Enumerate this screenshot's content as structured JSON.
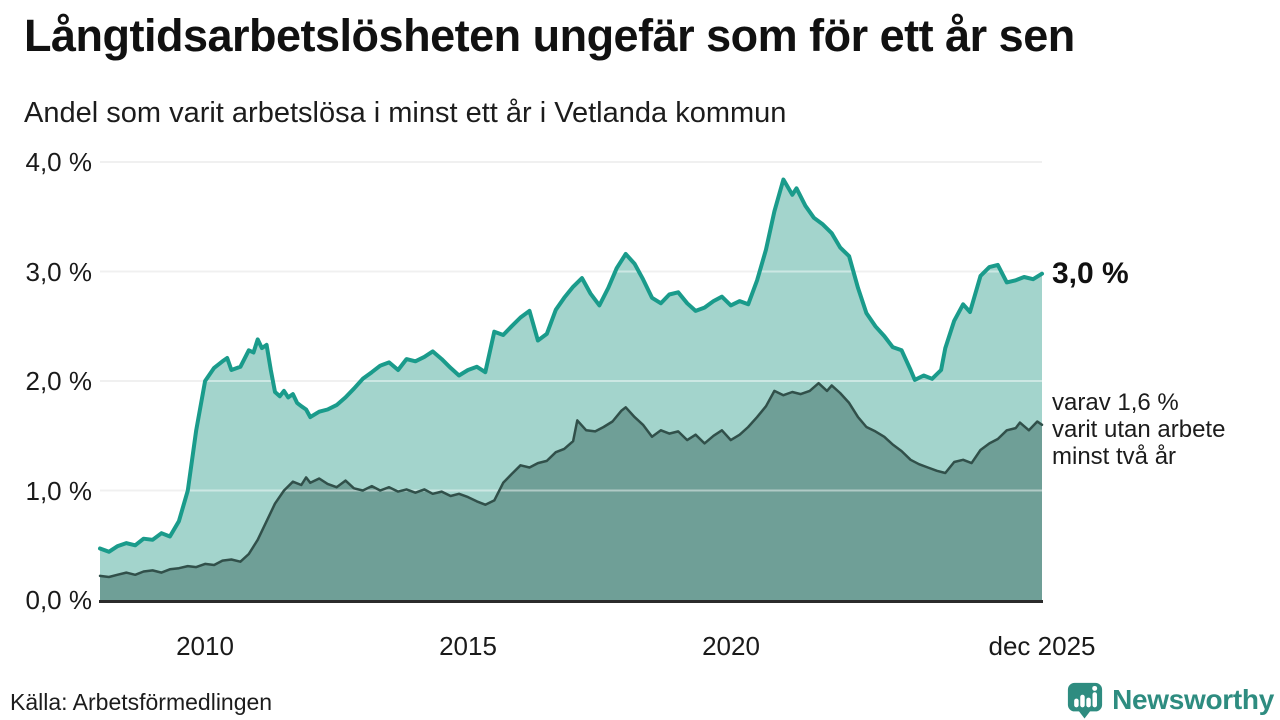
{
  "header": {
    "title": "Långtidsarbetslösheten ungefär som för ett år sen",
    "subtitle": "Andel som varit arbetslösa i minst ett år i Vetlanda kommun"
  },
  "footer": {
    "source": "Källa: Arbetsförmedlingen",
    "brand_name": "Newsworthy"
  },
  "colors": {
    "accent_teal": "#1a9b8b",
    "light_fill": "#a3d4cc",
    "dark_fill": "#6f9f97",
    "dark_line": "#31504a",
    "grid": "#e3e3e3",
    "grid_overlay": "rgba(255,255,255,0.45)",
    "axis": "#2b2b2b",
    "brand_teal": "#2e8c80"
  },
  "chart_data": {
    "type": "area",
    "title": "Långtidsarbetslösheten ungefär som för ett år sen",
    "subtitle": "Andel som varit arbetslösa i minst ett år i Vetlanda kommun",
    "xlabel": "",
    "ylabel": "",
    "xlim": [
      2008.0,
      2025.92
    ],
    "ylim": [
      0,
      4
    ],
    "grid": true,
    "legend_position": "right-annotations",
    "y_ticks": [
      {
        "value": 0,
        "label": "0,0 %"
      },
      {
        "value": 1,
        "label": "1,0 %"
      },
      {
        "value": 2,
        "label": "2,0 %"
      },
      {
        "value": 3,
        "label": "3,0 %"
      },
      {
        "value": 4,
        "label": "4,0 %"
      }
    ],
    "x_ticks": [
      {
        "value": 2010,
        "label": "2010"
      },
      {
        "value": 2015,
        "label": "2015"
      },
      {
        "value": 2020,
        "label": "2020"
      },
      {
        "value": 2025.92,
        "label": "dec 2025"
      }
    ],
    "series": [
      {
        "name": "Andel arbetslösa minst ett år",
        "end_label": "3,0 %",
        "end_value": "3,0 %",
        "line_color": "#1a9b8b",
        "fill_color": "#a3d4cc",
        "line_width": 4,
        "points": [
          [
            2008.0,
            0.47
          ],
          [
            2008.17,
            0.44
          ],
          [
            2008.33,
            0.49
          ],
          [
            2008.5,
            0.52
          ],
          [
            2008.67,
            0.5
          ],
          [
            2008.83,
            0.56
          ],
          [
            2009.0,
            0.55
          ],
          [
            2009.17,
            0.61
          ],
          [
            2009.33,
            0.58
          ],
          [
            2009.5,
            0.72
          ],
          [
            2009.67,
            1.0
          ],
          [
            2009.83,
            1.55
          ],
          [
            2010.0,
            2.0
          ],
          [
            2010.17,
            2.12
          ],
          [
            2010.33,
            2.18
          ],
          [
            2010.42,
            2.21
          ],
          [
            2010.5,
            2.1
          ],
          [
            2010.67,
            2.13
          ],
          [
            2010.83,
            2.28
          ],
          [
            2010.92,
            2.26
          ],
          [
            2011.0,
            2.38
          ],
          [
            2011.08,
            2.3
          ],
          [
            2011.17,
            2.33
          ],
          [
            2011.25,
            2.1
          ],
          [
            2011.33,
            1.9
          ],
          [
            2011.42,
            1.86
          ],
          [
            2011.5,
            1.91
          ],
          [
            2011.58,
            1.85
          ],
          [
            2011.67,
            1.88
          ],
          [
            2011.75,
            1.8
          ],
          [
            2011.83,
            1.77
          ],
          [
            2011.92,
            1.74
          ],
          [
            2012.0,
            1.67
          ],
          [
            2012.17,
            1.72
          ],
          [
            2012.33,
            1.74
          ],
          [
            2012.5,
            1.78
          ],
          [
            2012.67,
            1.85
          ],
          [
            2012.83,
            1.93
          ],
          [
            2013.0,
            2.02
          ],
          [
            2013.17,
            2.08
          ],
          [
            2013.33,
            2.14
          ],
          [
            2013.5,
            2.17
          ],
          [
            2013.67,
            2.1
          ],
          [
            2013.83,
            2.2
          ],
          [
            2014.0,
            2.18
          ],
          [
            2014.17,
            2.22
          ],
          [
            2014.33,
            2.27
          ],
          [
            2014.5,
            2.2
          ],
          [
            2014.67,
            2.12
          ],
          [
            2014.83,
            2.05
          ],
          [
            2015.0,
            2.1
          ],
          [
            2015.17,
            2.13
          ],
          [
            2015.33,
            2.08
          ],
          [
            2015.5,
            2.45
          ],
          [
            2015.67,
            2.42
          ],
          [
            2015.83,
            2.5
          ],
          [
            2016.0,
            2.58
          ],
          [
            2016.17,
            2.64
          ],
          [
            2016.33,
            2.37
          ],
          [
            2016.5,
            2.43
          ],
          [
            2016.67,
            2.65
          ],
          [
            2016.83,
            2.76
          ],
          [
            2017.0,
            2.86
          ],
          [
            2017.17,
            2.94
          ],
          [
            2017.33,
            2.8
          ],
          [
            2017.5,
            2.69
          ],
          [
            2017.67,
            2.85
          ],
          [
            2017.83,
            3.03
          ],
          [
            2018.0,
            3.16
          ],
          [
            2018.17,
            3.07
          ],
          [
            2018.33,
            2.93
          ],
          [
            2018.5,
            2.76
          ],
          [
            2018.67,
            2.71
          ],
          [
            2018.83,
            2.79
          ],
          [
            2019.0,
            2.81
          ],
          [
            2019.17,
            2.71
          ],
          [
            2019.33,
            2.64
          ],
          [
            2019.5,
            2.67
          ],
          [
            2019.67,
            2.73
          ],
          [
            2019.83,
            2.77
          ],
          [
            2020.0,
            2.69
          ],
          [
            2020.17,
            2.73
          ],
          [
            2020.33,
            2.7
          ],
          [
            2020.5,
            2.92
          ],
          [
            2020.67,
            3.2
          ],
          [
            2020.83,
            3.55
          ],
          [
            2021.0,
            3.84
          ],
          [
            2021.17,
            3.7
          ],
          [
            2021.25,
            3.76
          ],
          [
            2021.42,
            3.6
          ],
          [
            2021.58,
            3.49
          ],
          [
            2021.75,
            3.43
          ],
          [
            2021.92,
            3.35
          ],
          [
            2022.08,
            3.22
          ],
          [
            2022.25,
            3.14
          ],
          [
            2022.42,
            2.85
          ],
          [
            2022.58,
            2.62
          ],
          [
            2022.75,
            2.5
          ],
          [
            2022.92,
            2.41
          ],
          [
            2023.08,
            2.31
          ],
          [
            2023.25,
            2.28
          ],
          [
            2023.42,
            2.1
          ],
          [
            2023.5,
            2.01
          ],
          [
            2023.67,
            2.05
          ],
          [
            2023.83,
            2.02
          ],
          [
            2024.0,
            2.1
          ],
          [
            2024.08,
            2.3
          ],
          [
            2024.25,
            2.55
          ],
          [
            2024.42,
            2.7
          ],
          [
            2024.55,
            2.63
          ],
          [
            2024.75,
            2.96
          ],
          [
            2024.92,
            3.04
          ],
          [
            2025.08,
            3.06
          ],
          [
            2025.25,
            2.9
          ],
          [
            2025.42,
            2.92
          ],
          [
            2025.58,
            2.95
          ],
          [
            2025.75,
            2.93
          ],
          [
            2025.92,
            2.98
          ]
        ]
      },
      {
        "name": "varav utan arbete minst två år",
        "end_label_lines": [
          "varav 1,6 %",
          "varit utan arbete",
          "minst två år"
        ],
        "end_value": "1,6 %",
        "line_color": "#31504a",
        "fill_color": "#6f9f97",
        "line_width": 2.5,
        "points": [
          [
            2008.0,
            0.22
          ],
          [
            2008.17,
            0.21
          ],
          [
            2008.33,
            0.23
          ],
          [
            2008.5,
            0.25
          ],
          [
            2008.67,
            0.23
          ],
          [
            2008.83,
            0.26
          ],
          [
            2009.0,
            0.27
          ],
          [
            2009.17,
            0.25
          ],
          [
            2009.33,
            0.28
          ],
          [
            2009.5,
            0.29
          ],
          [
            2009.67,
            0.31
          ],
          [
            2009.83,
            0.3
          ],
          [
            2010.0,
            0.33
          ],
          [
            2010.17,
            0.32
          ],
          [
            2010.33,
            0.36
          ],
          [
            2010.5,
            0.37
          ],
          [
            2010.67,
            0.35
          ],
          [
            2010.83,
            0.42
          ],
          [
            2011.0,
            0.55
          ],
          [
            2011.17,
            0.72
          ],
          [
            2011.33,
            0.88
          ],
          [
            2011.5,
            1.0
          ],
          [
            2011.67,
            1.08
          ],
          [
            2011.83,
            1.05
          ],
          [
            2011.92,
            1.12
          ],
          [
            2012.0,
            1.07
          ],
          [
            2012.17,
            1.11
          ],
          [
            2012.33,
            1.06
          ],
          [
            2012.5,
            1.03
          ],
          [
            2012.67,
            1.09
          ],
          [
            2012.83,
            1.02
          ],
          [
            2013.0,
            1.0
          ],
          [
            2013.17,
            1.04
          ],
          [
            2013.33,
            1.0
          ],
          [
            2013.5,
            1.03
          ],
          [
            2013.67,
            0.99
          ],
          [
            2013.83,
            1.01
          ],
          [
            2014.0,
            0.98
          ],
          [
            2014.17,
            1.01
          ],
          [
            2014.33,
            0.97
          ],
          [
            2014.5,
            0.99
          ],
          [
            2014.67,
            0.95
          ],
          [
            2014.83,
            0.97
          ],
          [
            2015.0,
            0.94
          ],
          [
            2015.17,
            0.9
          ],
          [
            2015.33,
            0.87
          ],
          [
            2015.5,
            0.91
          ],
          [
            2015.67,
            1.07
          ],
          [
            2015.83,
            1.15
          ],
          [
            2016.0,
            1.23
          ],
          [
            2016.17,
            1.21
          ],
          [
            2016.33,
            1.25
          ],
          [
            2016.5,
            1.27
          ],
          [
            2016.67,
            1.35
          ],
          [
            2016.83,
            1.38
          ],
          [
            2017.0,
            1.45
          ],
          [
            2017.08,
            1.64
          ],
          [
            2017.25,
            1.55
          ],
          [
            2017.42,
            1.54
          ],
          [
            2017.58,
            1.58
          ],
          [
            2017.75,
            1.63
          ],
          [
            2017.92,
            1.73
          ],
          [
            2018.0,
            1.76
          ],
          [
            2018.17,
            1.67
          ],
          [
            2018.33,
            1.6
          ],
          [
            2018.5,
            1.49
          ],
          [
            2018.67,
            1.55
          ],
          [
            2018.83,
            1.52
          ],
          [
            2019.0,
            1.54
          ],
          [
            2019.17,
            1.46
          ],
          [
            2019.33,
            1.51
          ],
          [
            2019.5,
            1.43
          ],
          [
            2019.67,
            1.5
          ],
          [
            2019.83,
            1.55
          ],
          [
            2020.0,
            1.46
          ],
          [
            2020.17,
            1.51
          ],
          [
            2020.33,
            1.58
          ],
          [
            2020.5,
            1.67
          ],
          [
            2020.67,
            1.77
          ],
          [
            2020.83,
            1.91
          ],
          [
            2021.0,
            1.87
          ],
          [
            2021.17,
            1.9
          ],
          [
            2021.33,
            1.88
          ],
          [
            2021.5,
            1.91
          ],
          [
            2021.67,
            1.98
          ],
          [
            2021.83,
            1.91
          ],
          [
            2021.92,
            1.96
          ],
          [
            2022.08,
            1.89
          ],
          [
            2022.25,
            1.8
          ],
          [
            2022.42,
            1.67
          ],
          [
            2022.58,
            1.58
          ],
          [
            2022.75,
            1.54
          ],
          [
            2022.92,
            1.49
          ],
          [
            2023.08,
            1.42
          ],
          [
            2023.25,
            1.36
          ],
          [
            2023.42,
            1.28
          ],
          [
            2023.58,
            1.24
          ],
          [
            2023.75,
            1.21
          ],
          [
            2023.92,
            1.18
          ],
          [
            2024.08,
            1.16
          ],
          [
            2024.25,
            1.26
          ],
          [
            2024.42,
            1.28
          ],
          [
            2024.58,
            1.25
          ],
          [
            2024.75,
            1.37
          ],
          [
            2024.92,
            1.43
          ],
          [
            2025.08,
            1.47
          ],
          [
            2025.25,
            1.55
          ],
          [
            2025.42,
            1.57
          ],
          [
            2025.5,
            1.62
          ],
          [
            2025.67,
            1.55
          ],
          [
            2025.83,
            1.63
          ],
          [
            2025.92,
            1.6
          ]
        ]
      }
    ]
  }
}
